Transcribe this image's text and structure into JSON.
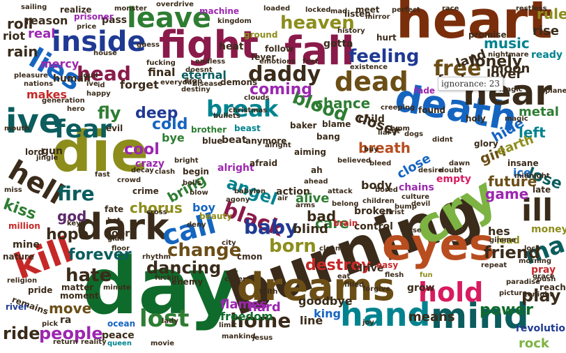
{
  "tooltip": "ignorance: 23",
  "colors": {
    "c1": "#7a2e0b",
    "c2": "#1f3a93",
    "c3": "#8a1a4a",
    "c4": "#2e7d32",
    "c5": "#5d2a6b",
    "c6": "#8d8d1c",
    "c7": "#0b5d5e",
    "c8": "#d81b60",
    "c9": "#b84d1f",
    "c10": "#3a2b1a",
    "c11": "#9c27b0",
    "c12": "#0f6b2b",
    "c13": "#1565c0",
    "c14": "#6b4e16",
    "c15": "#c62828",
    "c16": "#7cb342",
    "c17": "#00838f",
    "c18": "#4e3b7a"
  },
  "words": [
    {
      "id": "word-day",
      "text": "day"
    },
    {
      "id": "word-burning",
      "text": "burning"
    },
    {
      "id": "word-heart",
      "text": "heart"
    },
    {
      "id": "word-die",
      "text": "die"
    },
    {
      "id": "word-dreams",
      "text": "dreams"
    },
    {
      "id": "word-eyes",
      "text": "eyes"
    },
    {
      "id": "word-mind",
      "text": "mind"
    },
    {
      "id": "word-hand",
      "text": "hand"
    },
    {
      "id": "word-cry",
      "text": "cry"
    },
    {
      "id": "word-fight",
      "text": "fight"
    },
    {
      "id": "word-dark",
      "text": "dark"
    },
    {
      "id": "word-kill",
      "text": "kill"
    },
    {
      "id": "word-death",
      "text": "death"
    },
    {
      "id": "word-fall",
      "text": "fall"
    },
    {
      "id": "word-hear",
      "text": "hear"
    },
    {
      "id": "word-ive",
      "text": "ive"
    },
    {
      "id": "word-inside",
      "text": "inside"
    },
    {
      "id": "word-leave",
      "text": "leave"
    },
    {
      "id": "word-lies",
      "text": "lies"
    },
    {
      "id": "word-hold",
      "text": "hold"
    },
    {
      "id": "word-ill",
      "text": "ill"
    },
    {
      "id": "word-call",
      "text": "call"
    },
    {
      "id": "word-dead",
      "text": "dead"
    },
    {
      "id": "word-hell",
      "text": "hell"
    },
    {
      "id": "word-fear",
      "text": "fear"
    },
    {
      "id": "word-break",
      "text": "break"
    },
    {
      "id": "word-lost",
      "text": "lost"
    },
    {
      "id": "word-daddy",
      "text": "daddy"
    },
    {
      "id": "word-black",
      "text": "black"
    },
    {
      "id": "word-head",
      "text": "head"
    },
    {
      "id": "word-heaven",
      "text": "heaven"
    },
    {
      "id": "word-feeling",
      "text": "feeling"
    },
    {
      "id": "word-blood",
      "text": "blood"
    },
    {
      "id": "word-free",
      "text": "free"
    },
    {
      "id": "word-baby",
      "text": "baby"
    },
    {
      "id": "word-people",
      "text": "people"
    },
    {
      "id": "word-home",
      "text": "home"
    },
    {
      "id": "word-hate",
      "text": "hate"
    },
    {
      "id": "word-ma",
      "text": "ma"
    },
    {
      "id": "word-fire",
      "text": "fire"
    },
    {
      "id": "word-born",
      "text": "born"
    },
    {
      "id": "word-change",
      "text": "change"
    },
    {
      "id": "word-dancing",
      "text": "dancing"
    },
    {
      "id": "word-forever",
      "text": "forever"
    },
    {
      "id": "word-cold",
      "text": "cold"
    },
    {
      "id": "word-fly",
      "text": "fly"
    },
    {
      "id": "word-angel",
      "text": "angel"
    },
    {
      "id": "word-lose",
      "text": "lose"
    },
    {
      "id": "word-play",
      "text": "play"
    },
    {
      "id": "word-destroy",
      "text": "destroy"
    },
    {
      "id": "word-friend",
      "text": "friend"
    },
    {
      "id": "word-coming",
      "text": "coming"
    },
    {
      "id": "word-chance",
      "text": "chance"
    },
    {
      "id": "word-breath",
      "text": "breath"
    },
    {
      "id": "word-ride",
      "text": "ride"
    },
    {
      "id": "word-move",
      "text": "move"
    },
    {
      "id": "word-hide",
      "text": "hide"
    },
    {
      "id": "word-closer",
      "text": "closer"
    },
    {
      "id": "word-close",
      "text": "close"
    },
    {
      "id": "word-girl",
      "text": "girl"
    },
    {
      "id": "word-left",
      "text": "left"
    },
    {
      "id": "word-deep",
      "text": "deep"
    },
    {
      "id": "word-kiss",
      "text": "kiss"
    },
    {
      "id": "word-god",
      "text": "god"
    },
    {
      "id": "word-hope",
      "text": "hope"
    },
    {
      "id": "word-cool",
      "text": "cool"
    },
    {
      "id": "word-chorus",
      "text": "chorus"
    },
    {
      "id": "word-bring",
      "text": "bring"
    },
    {
      "id": "word-alive",
      "text": "alive"
    },
    {
      "id": "word-care",
      "text": "care"
    },
    {
      "id": "word-bad",
      "text": "bad"
    },
    {
      "id": "word-blind",
      "text": "blind"
    },
    {
      "id": "word-future",
      "text": "future"
    },
    {
      "id": "word-game",
      "text": "game"
    },
    {
      "id": "word-power",
      "text": "power"
    },
    {
      "id": "word-means",
      "text": "means"
    },
    {
      "id": "word-flames",
      "text": "flames"
    },
    {
      "id": "word-freedom",
      "text": "freedom"
    },
    {
      "id": "word-goodbye",
      "text": "goodbye"
    },
    {
      "id": "word-king",
      "text": "king"
    },
    {
      "id": "word-line",
      "text": "line"
    },
    {
      "id": "word-hard",
      "text": "hard"
    },
    {
      "id": "word-rock",
      "text": "rock"
    },
    {
      "id": "word-revolution",
      "text": "revolution"
    },
    {
      "id": "word-lonely",
      "text": "lonely"
    },
    {
      "id": "word-music",
      "text": "music"
    },
    {
      "id": "word-rules",
      "text": "rules"
    },
    {
      "id": "word-roll",
      "text": "roll"
    },
    {
      "id": "word-real",
      "text": "real"
    },
    {
      "id": "word-rain",
      "text": "rain"
    },
    {
      "id": "word-reason",
      "text": "reason"
    },
    {
      "id": "word-riot",
      "text": "riot"
    },
    {
      "id": "word-mercy",
      "text": "mercy"
    },
    {
      "id": "word-makes",
      "text": "makes"
    },
    {
      "id": "word-final",
      "text": "final"
    },
    {
      "id": "word-forget",
      "text": "forget"
    },
    {
      "id": "word-eternal",
      "text": "eternal"
    },
    {
      "id": "word-gotta",
      "text": "gotta"
    },
    {
      "id": "word-land",
      "text": "land"
    },
    {
      "id": "word-moon",
      "text": "moon"
    },
    {
      "id": "word-lover",
      "text": "lover"
    },
    {
      "id": "word-fool",
      "text": "fool"
    },
    {
      "id": "word-metal",
      "text": "metal"
    },
    {
      "id": "word-earth",
      "text": "earth"
    },
    {
      "id": "word-ice",
      "text": "ice"
    },
    {
      "id": "word-pass",
      "text": "pass"
    },
    {
      "id": "word-machine",
      "text": "machine"
    },
    {
      "id": "word-follow",
      "text": "follow"
    },
    {
      "id": "word-ground",
      "text": "ground"
    },
    {
      "id": "word-heat",
      "text": "heat"
    },
    {
      "id": "word-rise",
      "text": "rise"
    },
    {
      "id": "word-ready",
      "text": "ready"
    },
    {
      "id": "word-action",
      "text": "action"
    },
    {
      "id": "word-body",
      "text": "body"
    },
    {
      "id": "word-control",
      "text": "control"
    },
    {
      "id": "word-broken",
      "text": "broken"
    },
    {
      "id": "word-chains",
      "text": "chains"
    },
    {
      "id": "word-empty",
      "text": "empty"
    },
    {
      "id": "word-lead",
      "text": "lead"
    },
    {
      "id": "word-hes",
      "text": "hes"
    },
    {
      "id": "word-money",
      "text": "money"
    },
    {
      "id": "word-door",
      "text": "door"
    },
    {
      "id": "word-boy",
      "text": "boy"
    },
    {
      "id": "word-beauty",
      "text": "beauty"
    },
    {
      "id": "word-crime",
      "text": "crime"
    },
    {
      "id": "word-fate",
      "text": "fate"
    },
    {
      "id": "word-alright",
      "text": "alright"
    },
    {
      "id": "word-begin",
      "text": "begin"
    },
    {
      "id": "word-afraid",
      "text": "afraid"
    },
    {
      "id": "word-beat",
      "text": "beat"
    },
    {
      "id": "word-blue",
      "text": "blue"
    },
    {
      "id": "word-beast",
      "text": "beast"
    },
    {
      "id": "word-anymore",
      "text": "anymore"
    },
    {
      "id": "word-bang",
      "text": "bang"
    },
    {
      "id": "word-baker",
      "text": "baker"
    },
    {
      "id": "word-blame",
      "text": "blame"
    },
    {
      "id": "word-child",
      "text": "child"
    },
    {
      "id": "word-found",
      "text": "found"
    },
    {
      "id": "word-fade",
      "text": "fade"
    },
    {
      "id": "word-bye",
      "text": "bye"
    },
    {
      "id": "word-human",
      "text": "human"
    },
    {
      "id": "word-crazy",
      "text": "crazy"
    },
    {
      "id": "word-gun",
      "text": "gun"
    },
    {
      "id": "word-mine",
      "text": "mine"
    },
    {
      "id": "word-nature",
      "text": "nature"
    },
    {
      "id": "word-matter",
      "text": "matter"
    },
    {
      "id": "word-moment",
      "text": "moment"
    },
    {
      "id": "word-pride",
      "text": "pride"
    },
    {
      "id": "word-remains",
      "text": "remains"
    },
    {
      "id": "word-river",
      "text": "river"
    },
    {
      "id": "word-ra",
      "text": "ra"
    },
    {
      "id": "word-peace",
      "text": "peace"
    },
    {
      "id": "word-ocean",
      "text": "ocean"
    },
    {
      "id": "word-enemy",
      "text": "enemy"
    },
    {
      "id": "word-drive",
      "text": "drive"
    },
    {
      "id": "word-grow",
      "text": "grow"
    },
    {
      "id": "word-easy",
      "text": "easy"
    },
    {
      "id": "word-reach",
      "text": "reach"
    },
    {
      "id": "word-pray",
      "text": "pray"
    },
    {
      "id": "word-million",
      "text": "million"
    },
    {
      "id": "word-lord",
      "text": "lord"
    },
    {
      "id": "word-brother",
      "text": "brother"
    },
    {
      "id": "word-evil",
      "text": "evil"
    },
    {
      "id": "word-late",
      "text": "late"
    },
    {
      "id": "word-insane",
      "text": "insane"
    },
    {
      "id": "word-glory",
      "text": "glory"
    },
    {
      "id": "word-holy",
      "text": "holy"
    },
    {
      "id": "word-brain",
      "text": "brain"
    },
    {
      "id": "word-demons",
      "text": "demons"
    },
    {
      "id": "word-fever",
      "text": "fever"
    },
    {
      "id": "word-listen",
      "text": "listen"
    },
    {
      "id": "word-meet",
      "text": "meet"
    },
    {
      "id": "word-hurt",
      "text": "hurt"
    },
    {
      "id": "word-realize",
      "text": "realize"
    },
    {
      "id": "word-prisoner",
      "text": "prisoner"
    },
    {
      "id": "word-promise",
      "text": "promise"
    },
    {
      "id": "word-restless",
      "text": "restless"
    },
    {
      "id": "word-nightmare",
      "text": "nightmare"
    },
    {
      "id": "word-existence",
      "text": "existence"
    },
    {
      "id": "word-generation",
      "text": "generation"
    },
    {
      "id": "word-happy",
      "text": "happy"
    },
    {
      "id": "word-fucking",
      "text": "fucking"
    },
    {
      "id": "word-endless",
      "text": "endless"
    },
    {
      "id": "word-doesnt",
      "text": "doesnt"
    },
    {
      "id": "word-destiny",
      "text": "destiny"
    },
    {
      "id": "word-dawn",
      "text": "dawn"
    },
    {
      "id": "word-clouds",
      "text": "clouds"
    },
    {
      "id": "word-bells",
      "text": "bells"
    },
    {
      "id": "word-blow",
      "text": "blow"
    },
    {
      "id": "word-bright",
      "text": "bright"
    },
    {
      "id": "word-crowd",
      "text": "crowd"
    },
    {
      "id": "word-cross",
      "text": "cross"
    },
    {
      "id": "word-clash",
      "text": "clash"
    },
    {
      "id": "word-decay",
      "text": "decay"
    },
    {
      "id": "word-ah",
      "text": "ah"
    },
    {
      "id": "word-aiming",
      "text": "aiming"
    },
    {
      "id": "word-desire",
      "text": "desire"
    },
    {
      "id": "word-doubt",
      "text": "doubt"
    },
    {
      "id": "word-attack",
      "text": "attack"
    },
    {
      "id": "word-arms",
      "text": "arms"
    },
    {
      "id": "word-belong",
      "text": "belong"
    },
    {
      "id": "word-cmon",
      "text": "cmon"
    },
    {
      "id": "word-city",
      "text": "city"
    },
    {
      "id": "word-gimme",
      "text": "gimme"
    },
    {
      "id": "word-morning",
      "text": "morning"
    },
    {
      "id": "word-paradise",
      "text": "paradise"
    },
    {
      "id": "word-flesh",
      "text": "flesh"
    },
    {
      "id": "word-fun",
      "text": "fun"
    },
    {
      "id": "word-joy",
      "text": "joy"
    },
    {
      "id": "word-limit",
      "text": "limit"
    },
    {
      "id": "word-fuckin",
      "text": "fuckin"
    },
    {
      "id": "word-lady",
      "text": "lady"
    },
    {
      "id": "word-return",
      "text": "return"
    },
    {
      "id": "word-reality",
      "text": "reality"
    },
    {
      "id": "word-queen",
      "text": "queen"
    },
    {
      "id": "word-movie",
      "text": "movie"
    },
    {
      "id": "word-repeat",
      "text": "repeat"
    },
    {
      "id": "word-mad",
      "text": "mad"
    },
    {
      "id": "word-loaded",
      "text": "loaded"
    },
    {
      "id": "word-locked",
      "text": "locked"
    },
    {
      "id": "word-sailing",
      "text": "sailing"
    },
    {
      "id": "word-monster",
      "text": "monster"
    },
    {
      "id": "word-kingdom",
      "text": "kingdom"
    },
    {
      "id": "word-history",
      "text": "history"
    },
    {
      "id": "word-mirror",
      "text": "mirror"
    },
    {
      "id": "word-perfect",
      "text": "perfect"
    },
    {
      "id": "word-race",
      "text": "race"
    },
    {
      "id": "word-overdrive",
      "text": "overdrive"
    },
    {
      "id": "word-pleasure",
      "text": "pleasure"
    },
    {
      "id": "word-nations",
      "text": "nations"
    },
    {
      "id": "word-loud",
      "text": "loud"
    },
    {
      "id": "word-house",
      "text": "house"
    },
    {
      "id": "word-magic",
      "text": "magic"
    },
    {
      "id": "word-midnight",
      "text": "midnight"
    },
    {
      "id": "word-planet",
      "text": "planet"
    },
    {
      "id": "word-christmas",
      "text": "christmas"
    },
    {
      "id": "word-bullets",
      "text": "bullets"
    },
    {
      "id": "word-hero",
      "text": "hero"
    },
    {
      "id": "word-jingle",
      "text": "jingle"
    },
    {
      "id": "word-mouth",
      "text": "mouth"
    },
    {
      "id": "word-miss",
      "text": "miss"
    },
    {
      "id": "word-bleed",
      "text": "bleed"
    },
    {
      "id": "word-alright2",
      "text": "alright"
    },
    {
      "id": "word-believed",
      "text": "believed"
    },
    {
      "id": "word-buy",
      "text": "buy"
    },
    {
      "id": "word-dogs",
      "text": "dogs"
    },
    {
      "id": "word-cut",
      "text": "cut"
    },
    {
      "id": "word-creeping",
      "text": "creeping"
    },
    {
      "id": "word-culture",
      "text": "culture"
    },
    {
      "id": "word-devil",
      "text": "devil"
    },
    {
      "id": "word-didnt",
      "text": "didnt"
    },
    {
      "id": "word-bump",
      "text": "bump"
    },
    {
      "id": "word-christ",
      "text": "christ"
    },
    {
      "id": "word-curse",
      "text": "curse"
    },
    {
      "id": "word-deny",
      "text": "deny"
    },
    {
      "id": "word-agony",
      "text": "agony"
    },
    {
      "id": "word-babylon",
      "text": "babylon"
    },
    {
      "id": "word-faith",
      "text": "faith"
    },
    {
      "id": "word-jesus",
      "text": "jesus"
    },
    {
      "id": "word-forgive",
      "text": "forgive"
    },
    {
      "id": "word-loco",
      "text": "loco"
    },
    {
      "id": "word-grace",
      "text": "grace"
    },
    {
      "id": "word-picture",
      "text": "picture"
    },
    {
      "id": "word-religion",
      "text": "religion"
    },
    {
      "id": "word-minute",
      "text": "minute"
    },
    {
      "id": "word-mankind",
      "text": "mankind"
    },
    {
      "id": "word-cover",
      "text": "cover"
    },
    {
      "id": "word-eat",
      "text": "eat"
    },
    {
      "id": "word-filled",
      "text": "filled"
    },
    {
      "id": "word-ahead",
      "text": "ahead"
    },
    {
      "id": "word-air",
      "text": "air"
    },
    {
      "id": "word-children",
      "text": "children"
    },
    {
      "id": "word-bored",
      "text": "bored"
    },
    {
      "id": "word-clean",
      "text": "clean"
    },
    {
      "id": "word-magic2",
      "text": "magic"
    },
    {
      "id": "word-pick",
      "text": "pick"
    },
    {
      "id": "word-key",
      "text": "key"
    },
    {
      "id": "word-hot",
      "text": "hot"
    },
    {
      "id": "word-fast",
      "text": "fast"
    },
    {
      "id": "word-glad",
      "text": "glad"
    },
    {
      "id": "word-floor",
      "text": "floor"
    },
    {
      "id": "word-rhythm",
      "text": "rhythm"
    },
    {
      "id": "word-push",
      "text": "push"
    },
    {
      "id": "word-tonight",
      "text": "tonight"
    },
    {
      "id": "word-id",
      "text": "id"
    },
    {
      "id": "word-ive2",
      "text": "ive"
    },
    {
      "id": "word-emotions",
      "text": "emotions"
    },
    {
      "id": "word-everyday",
      "text": "everyday"
    },
    {
      "id": "word-disease",
      "text": "disease"
    },
    {
      "id": "word-drop",
      "text": "drop"
    },
    {
      "id": "word-feet",
      "text": "feet"
    },
    {
      "id": "word-price",
      "text": "price"
    },
    {
      "id": "word-guess",
      "text": "guess"
    },
    {
      "id": "word-hmm",
      "text": "hmm"
    },
    {
      "id": "word-liar",
      "text": "liar"
    }
  ]
}
